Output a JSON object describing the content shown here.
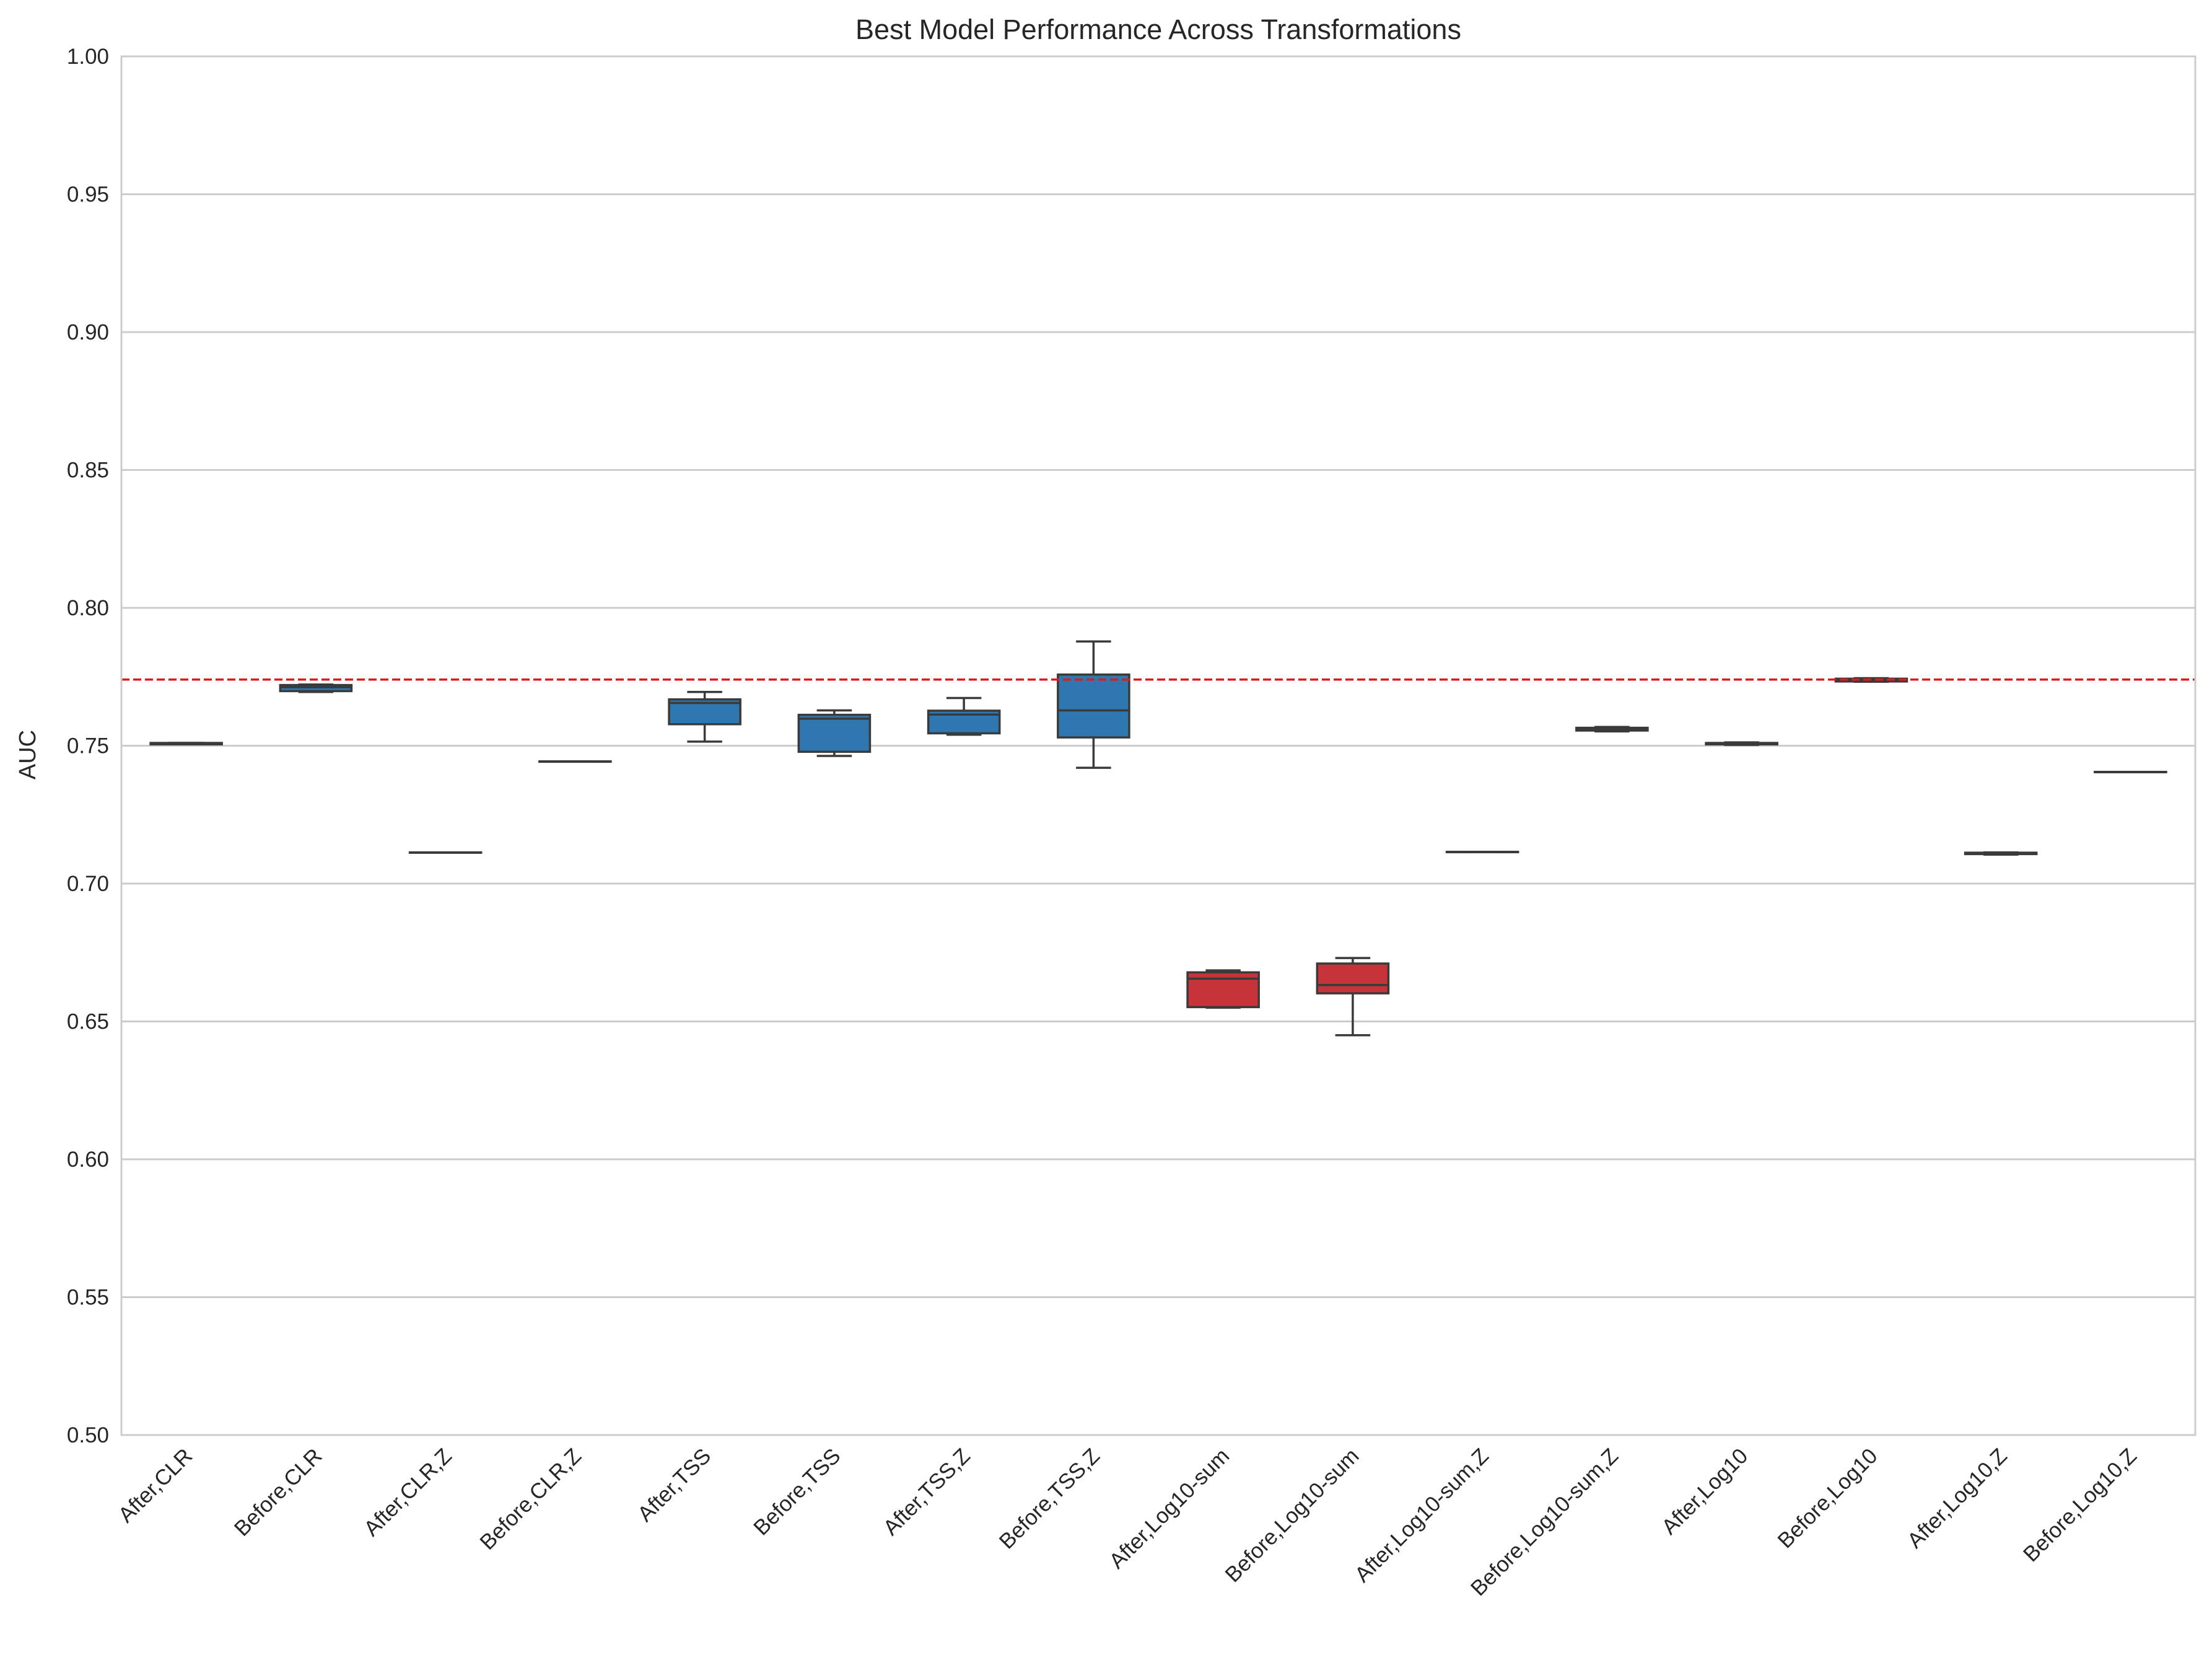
{
  "chart_data": {
    "type": "box",
    "title": "Best Model Performance Across Transformations",
    "xlabel": "",
    "ylabel": "AUC",
    "ylim": [
      0.5,
      1.0
    ],
    "yticks": [
      "0.50",
      "0.55",
      "0.60",
      "0.65",
      "0.70",
      "0.75",
      "0.80",
      "0.85",
      "0.90",
      "0.95",
      "1.00"
    ],
    "grid": "horizontal",
    "reference_line": {
      "y": 0.774,
      "style": "dashed",
      "color": "#e0191b"
    },
    "colors": {
      "blue": "#2f77b0",
      "red": "#c6343a",
      "median": "#3a3a3a",
      "grid": "#cccccc"
    },
    "categories": [
      "After,CLR",
      "Before,CLR",
      "After,CLR,Z",
      "Before,CLR,Z",
      "After,TSS",
      "Before,TSS",
      "After,TSS,Z",
      "Before,TSS,Z",
      "After,Log10-sum",
      "Before,Log10-sum",
      "After,Log10-sum,Z",
      "Before,Log10-sum,Z",
      "After,Log10",
      "Before,Log10",
      "After,Log10,Z",
      "Before,Log10,Z"
    ],
    "boxes": [
      {
        "whislo": 0.7505,
        "q1": 0.7505,
        "med": 0.7508,
        "q3": 0.751,
        "whishi": 0.751,
        "color": "blue"
      },
      {
        "whislo": 0.7695,
        "q1": 0.7698,
        "med": 0.7712,
        "q3": 0.772,
        "whishi": 0.7722,
        "color": "blue"
      },
      {
        "whislo": 0.7113,
        "q1": 0.7113,
        "med": 0.7113,
        "q3": 0.7113,
        "whishi": 0.7113,
        "color": "blue"
      },
      {
        "whislo": 0.7443,
        "q1": 0.7443,
        "med": 0.7443,
        "q3": 0.7443,
        "whishi": 0.7443,
        "color": "blue"
      },
      {
        "whislo": 0.7515,
        "q1": 0.7578,
        "med": 0.7655,
        "q3": 0.7668,
        "whishi": 0.7695,
        "color": "blue"
      },
      {
        "whislo": 0.7463,
        "q1": 0.7478,
        "med": 0.7598,
        "q3": 0.7612,
        "whishi": 0.7628,
        "color": "blue"
      },
      {
        "whislo": 0.754,
        "q1": 0.7545,
        "med": 0.7613,
        "q3": 0.7627,
        "whishi": 0.7673,
        "color": "blue"
      },
      {
        "whislo": 0.742,
        "q1": 0.753,
        "med": 0.7628,
        "q3": 0.7758,
        "whishi": 0.7878,
        "color": "blue"
      },
      {
        "whislo": 0.655,
        "q1": 0.6552,
        "med": 0.6655,
        "q3": 0.6678,
        "whishi": 0.6685,
        "color": "red"
      },
      {
        "whislo": 0.645,
        "q1": 0.6602,
        "med": 0.6632,
        "q3": 0.671,
        "whishi": 0.673,
        "color": "red"
      },
      {
        "whislo": 0.7115,
        "q1": 0.7115,
        "med": 0.7115,
        "q3": 0.7115,
        "whishi": 0.7115,
        "color": "blue"
      },
      {
        "whislo": 0.7552,
        "q1": 0.7555,
        "med": 0.756,
        "q3": 0.7565,
        "whishi": 0.7568,
        "color": "blue"
      },
      {
        "whislo": 0.7503,
        "q1": 0.7505,
        "med": 0.7508,
        "q3": 0.751,
        "whishi": 0.7512,
        "color": "blue"
      },
      {
        "whislo": 0.7732,
        "q1": 0.7733,
        "med": 0.7738,
        "q3": 0.7743,
        "whishi": 0.7745,
        "color": "blue"
      },
      {
        "whislo": 0.7105,
        "q1": 0.7107,
        "med": 0.7108,
        "q3": 0.7112,
        "whishi": 0.7113,
        "color": "blue"
      },
      {
        "whislo": 0.7405,
        "q1": 0.7405,
        "med": 0.7405,
        "q3": 0.7405,
        "whishi": 0.7405,
        "color": "blue"
      }
    ]
  }
}
